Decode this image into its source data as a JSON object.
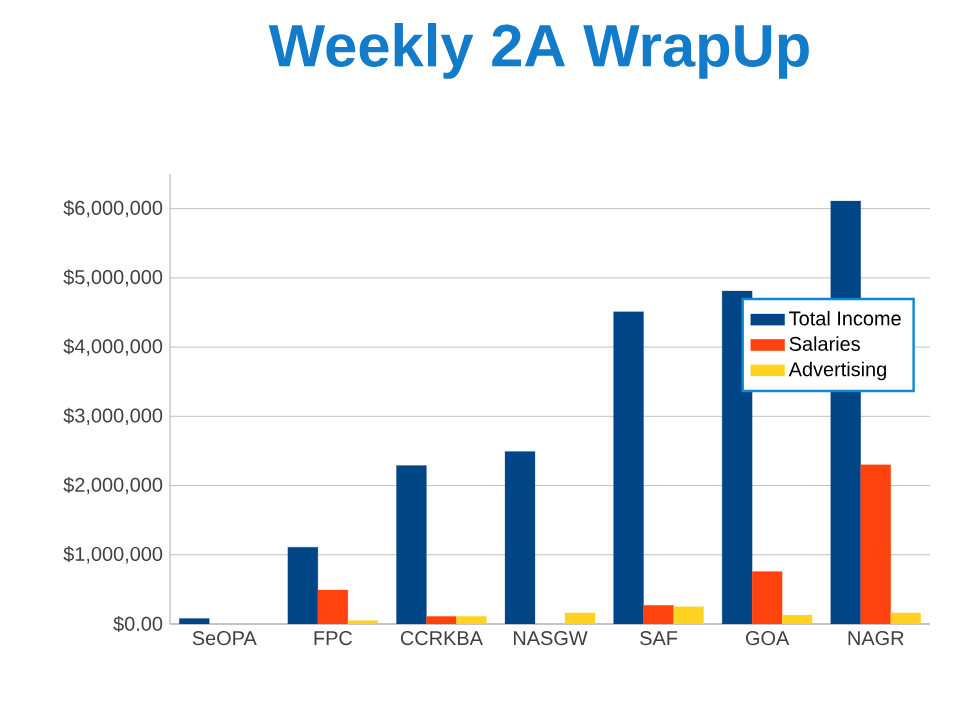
{
  "chart_data": {
    "type": "bar",
    "title": "Weekly 2A WrapUp",
    "categories": [
      "SeOPA",
      "FPC",
      "CCRKBA",
      "NASGW",
      "SAF",
      "GOA",
      "NAGR"
    ],
    "series": [
      {
        "name": "Total Income",
        "color": "#004586",
        "values": [
          80000,
          1110000,
          2290000,
          2490000,
          4510000,
          4810000,
          6110000
        ]
      },
      {
        "name": "Salaries",
        "color": "#ff420e",
        "values": [
          null,
          490000,
          110000,
          null,
          270000,
          760000,
          2300000
        ]
      },
      {
        "name": "Advertising",
        "color": "#ffd320",
        "values": [
          null,
          50000,
          110000,
          160000,
          250000,
          130000,
          160000
        ]
      }
    ],
    "ylim": [
      0,
      6500000
    ],
    "yticks": [
      {
        "value": 0,
        "label": "$0.00"
      },
      {
        "value": 1000000,
        "label": "$1,000,000"
      },
      {
        "value": 2000000,
        "label": "$2,000,000"
      },
      {
        "value": 3000000,
        "label": "$3,000,000"
      },
      {
        "value": 4000000,
        "label": "$4,000,000"
      },
      {
        "value": 5000000,
        "label": "$5,000,000"
      },
      {
        "value": 6000000,
        "label": "$6,000,000"
      }
    ],
    "grid": "y",
    "legend": "right"
  }
}
